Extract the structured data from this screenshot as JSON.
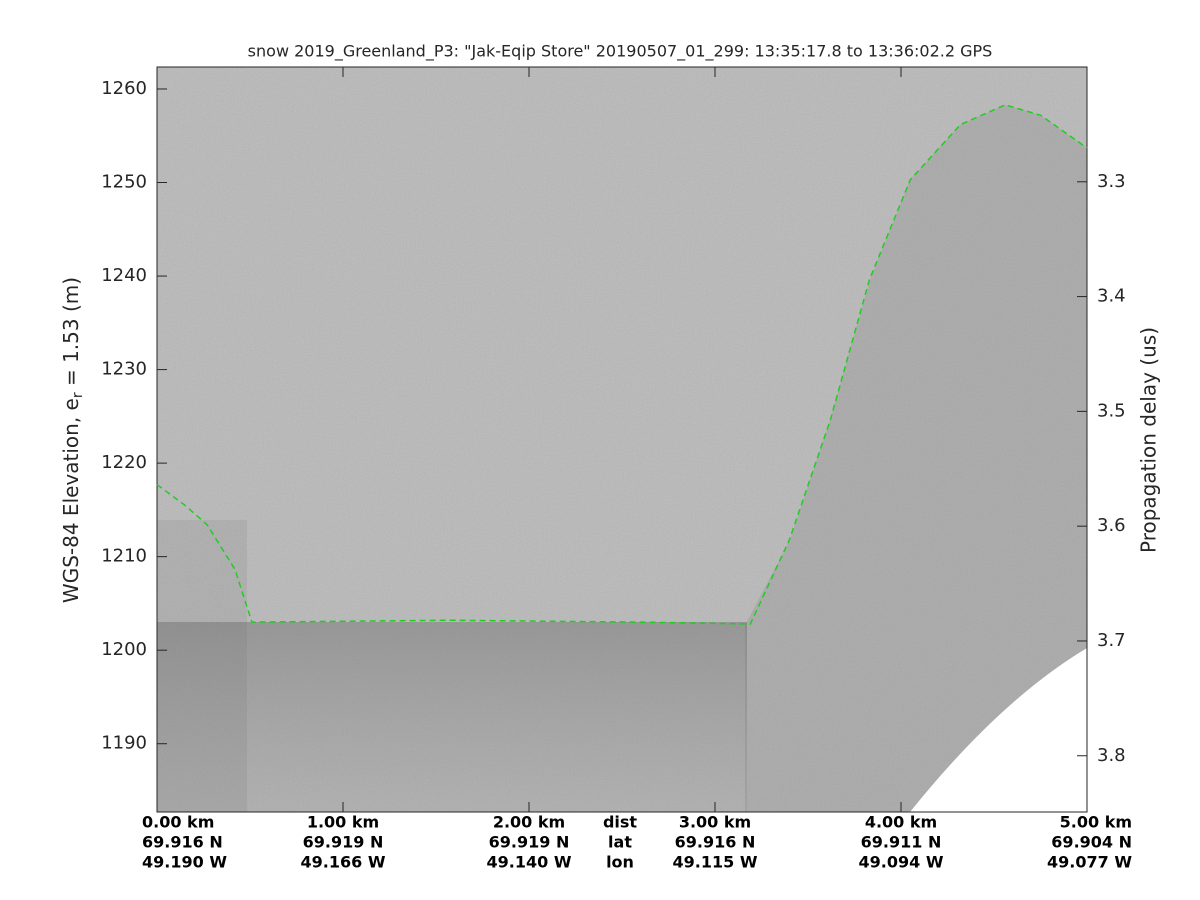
{
  "chart_data": {
    "type": "line",
    "title": "snow 2019_Greenland_P3: \"Jak-Eqip Store\"  20190507_01_299: 13:35:17.8 to 13:36:02.2 GPS",
    "ylabel": "WGS-84 Elevation, e",
    "ylabel_sub": "r",
    "ylabel_end": " = 1.53 (m)",
    "y2label": "Propagation delay (us)",
    "xlim": [
      0,
      5
    ],
    "xticks": [
      {
        "value": 0,
        "label": "0.00 km"
      },
      {
        "value": 1,
        "label": "1.00 km"
      },
      {
        "value": 2,
        "label": "2.00 km"
      },
      {
        "value": 3,
        "label": "3.00 km"
      },
      {
        "value": 4,
        "label": "4.00 km"
      },
      {
        "value": 5,
        "label": "5.00 km"
      }
    ],
    "lat_labels": [
      "69.916 N",
      "69.919 N",
      "69.919 N",
      "69.916 N",
      "69.911 N",
      "69.904 N"
    ],
    "lon_labels": [
      "49.190 W",
      "49.166 W",
      "49.140 W",
      "49.115 W",
      "49.094 W",
      "49.077 W"
    ],
    "row_labels": [
      "dist",
      "lat",
      "lon"
    ],
    "ylim": [
      1182.7,
      1262.35
    ],
    "yticks": [
      1190,
      1200,
      1210,
      1220,
      1230,
      1240,
      1250,
      1260
    ],
    "y2lim": [
      3.849,
      3.2
    ],
    "y2ticks": [
      3.3,
      3.4,
      3.5,
      3.6,
      3.7,
      3.8
    ],
    "series": [
      {
        "name": "surface",
        "color": "#22cc22",
        "x": [
          0,
          0.15,
          0.27,
          0.42,
          0.51,
          1.58,
          2.6,
          3.19,
          3.4,
          3.62,
          3.83,
          4.05,
          4.32,
          4.56,
          4.75,
          5.0
        ],
        "values": [
          1217.7,
          1215.5,
          1213.4,
          1208.6,
          1203.0,
          1203.2,
          1203.0,
          1202.8,
          1211.8,
          1224.6,
          1239.6,
          1250.3,
          1256.2,
          1258.3,
          1257.2,
          1253.7
        ]
      }
    ]
  }
}
